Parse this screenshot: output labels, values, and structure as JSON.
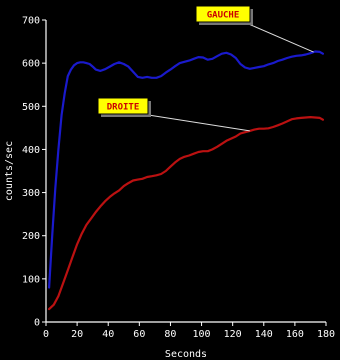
{
  "chart_data": {
    "type": "line",
    "title": "",
    "xlabel": "Seconds",
    "ylabel": "counts/sec",
    "xlim": [
      0,
      180
    ],
    "ylim": [
      0,
      700
    ],
    "xticks": [
      0,
      20,
      40,
      60,
      80,
      100,
      120,
      140,
      160,
      180
    ],
    "yticks": [
      0,
      100,
      200,
      300,
      400,
      500,
      600,
      700
    ],
    "grid": false,
    "legend": "callout labels",
    "background": "#000000",
    "axis_color": "#ffffff",
    "series": [
      {
        "name": "GAUCHE",
        "color": "#1a1acc",
        "x": [
          2,
          4,
          6,
          8,
          10,
          12,
          14,
          16,
          18,
          20,
          22,
          24,
          26,
          28,
          30,
          32,
          35,
          38,
          41,
          44,
          47,
          50,
          53,
          56,
          59,
          62,
          65,
          68,
          71,
          74,
          77,
          80,
          83,
          86,
          89,
          92,
          95,
          98,
          101,
          104,
          107,
          110,
          113,
          116,
          119,
          122,
          125,
          128,
          131,
          134,
          137,
          140,
          143,
          146,
          149,
          152,
          155,
          158,
          161,
          164,
          167,
          170,
          173,
          176,
          178
        ],
        "y": [
          80,
          200,
          310,
          400,
          480,
          530,
          570,
          585,
          595,
          600,
          602,
          602,
          600,
          598,
          592,
          585,
          582,
          586,
          592,
          598,
          602,
          598,
          592,
          580,
          568,
          566,
          568,
          566,
          566,
          570,
          578,
          585,
          593,
          600,
          603,
          606,
          610,
          614,
          613,
          608,
          610,
          616,
          622,
          624,
          620,
          612,
          598,
          590,
          587,
          589,
          591,
          593,
          597,
          600,
          605,
          608,
          612,
          615,
          617,
          618,
          620,
          623,
          627,
          626,
          622
        ]
      },
      {
        "name": "DROITE",
        "color": "#bb1111",
        "x": [
          2,
          5,
          8,
          11,
          14,
          17,
          20,
          23,
          26,
          29,
          32,
          35,
          38,
          41,
          44,
          47,
          50,
          53,
          56,
          59,
          62,
          65,
          68,
          71,
          74,
          77,
          80,
          83,
          86,
          89,
          92,
          95,
          98,
          101,
          104,
          107,
          110,
          113,
          116,
          119,
          122,
          125,
          128,
          131,
          134,
          137,
          140,
          143,
          146,
          149,
          152,
          155,
          158,
          161,
          164,
          167,
          170,
          173,
          176,
          178
        ],
        "y": [
          30,
          40,
          60,
          90,
          120,
          150,
          180,
          205,
          225,
          240,
          255,
          268,
          280,
          290,
          298,
          305,
          315,
          322,
          328,
          330,
          332,
          336,
          338,
          340,
          343,
          350,
          360,
          370,
          378,
          383,
          386,
          390,
          394,
          396,
          396,
          400,
          406,
          413,
          420,
          425,
          430,
          437,
          440,
          443,
          446,
          448,
          448,
          449,
          452,
          456,
          460,
          465,
          470,
          472,
          473,
          474,
          475,
          474,
          473,
          469
        ]
      }
    ]
  },
  "callouts": [
    {
      "label": "GAUCHE",
      "series": 0,
      "anchor_x": 172
    },
    {
      "label": "DROITE",
      "series": 1,
      "anchor_x": 131
    }
  ]
}
